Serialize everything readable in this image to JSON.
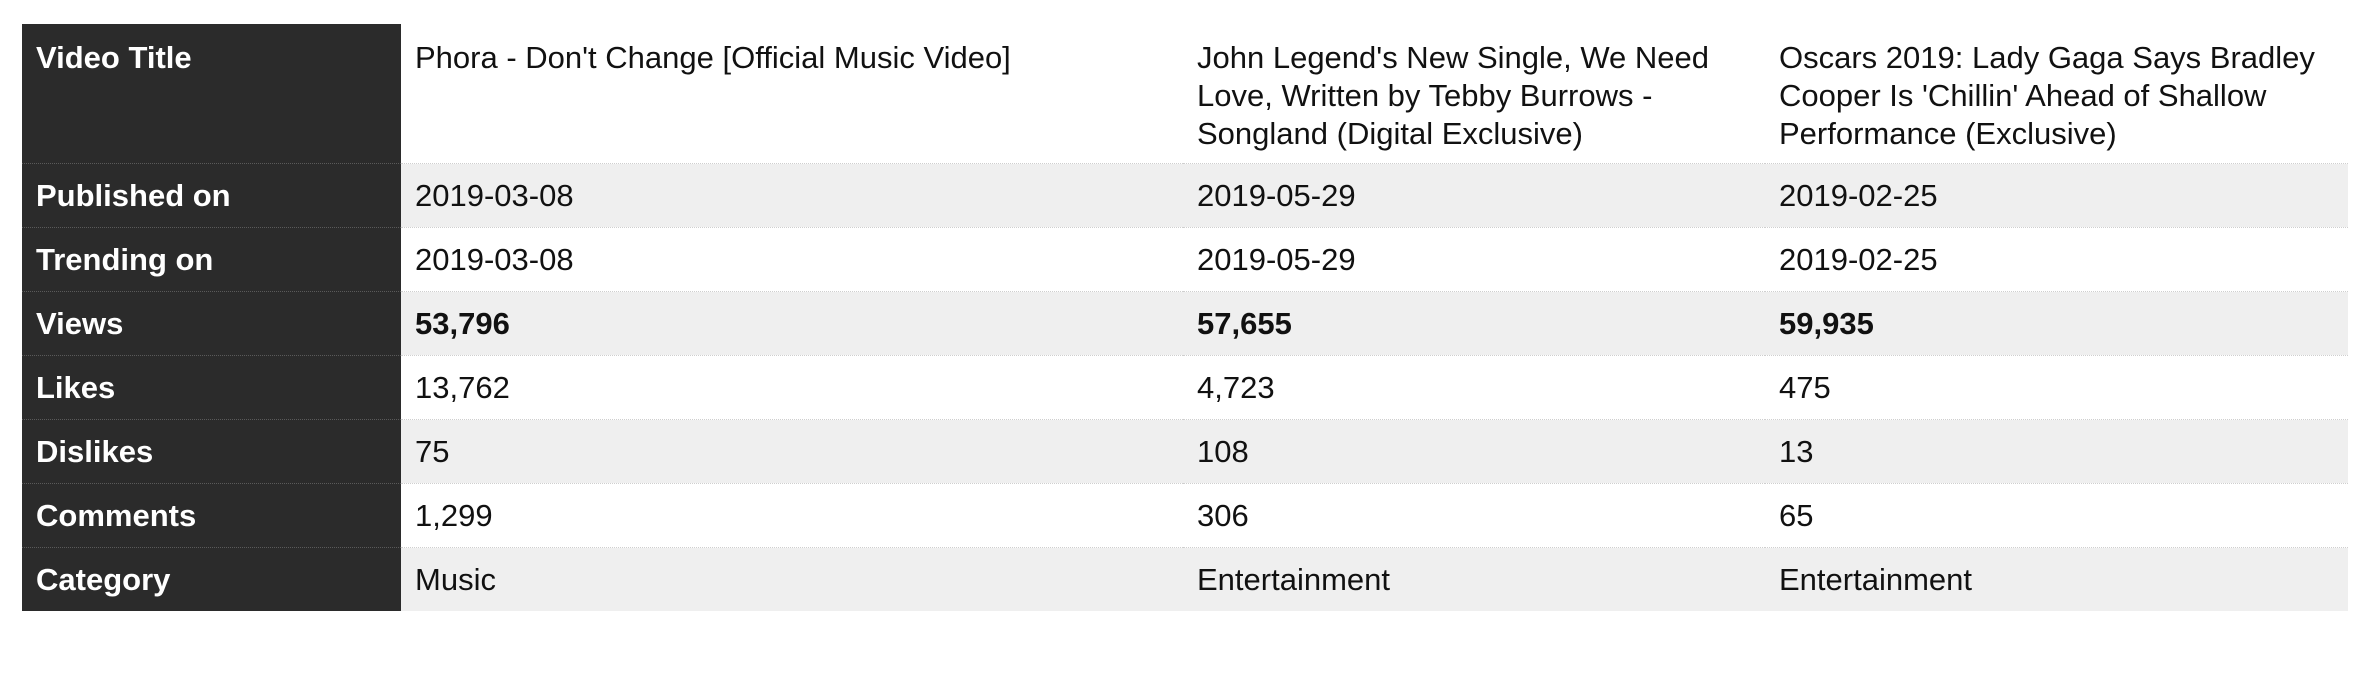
{
  "table": {
    "row_labels": {
      "title": "Video Title",
      "published": "Published on",
      "trending": "Trending on",
      "views": "Views",
      "likes": "Likes",
      "dislikes": "Dislikes",
      "comments": "Comments",
      "category": "Category"
    },
    "videos": [
      {
        "title": "Phora - Don't Change [Official Music Video]",
        "published": "2019-03-08",
        "trending": "2019-03-08",
        "views": "53,796",
        "likes": "13,762",
        "dislikes": "75",
        "comments": "1,299",
        "category": "Music"
      },
      {
        "title": "John Legend's New Single, We Need Love, Written by Tebby Burrows - Songland (Digital Exclusive)",
        "published": "2019-05-29",
        "trending": "2019-05-29",
        "views": "57,655",
        "likes": "4,723",
        "dislikes": "108",
        "comments": "306",
        "category": "Entertainment"
      },
      {
        "title": "Oscars 2019: Lady Gaga Says Bradley Cooper Is 'Chillin' Ahead of Shallow Performance (Exclusive)",
        "published": "2019-02-25",
        "trending": "2019-02-25",
        "views": "59,935",
        "likes": "475",
        "dislikes": "13",
        "comments": "65",
        "category": "Entertainment"
      }
    ]
  }
}
